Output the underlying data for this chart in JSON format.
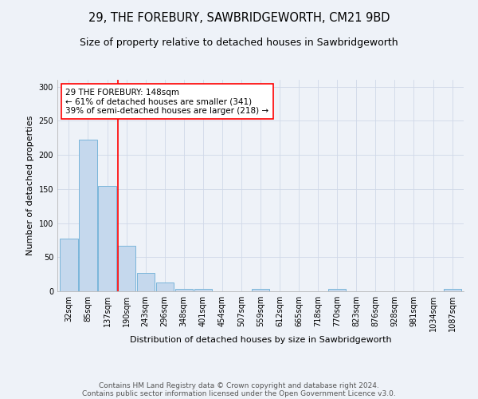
{
  "title": "29, THE FOREBURY, SAWBRIDGEWORTH, CM21 9BD",
  "subtitle": "Size of property relative to detached houses in Sawbridgeworth",
  "xlabel": "Distribution of detached houses by size in Sawbridgeworth",
  "ylabel": "Number of detached properties",
  "bar_labels": [
    "32sqm",
    "85sqm",
    "137sqm",
    "190sqm",
    "243sqm",
    "296sqm",
    "348sqm",
    "401sqm",
    "454sqm",
    "507sqm",
    "559sqm",
    "612sqm",
    "665sqm",
    "718sqm",
    "770sqm",
    "823sqm",
    "876sqm",
    "928sqm",
    "981sqm",
    "1034sqm",
    "1087sqm"
  ],
  "bar_values": [
    77,
    222,
    155,
    67,
    27,
    13,
    4,
    4,
    0,
    0,
    4,
    0,
    0,
    0,
    4,
    0,
    0,
    0,
    0,
    0,
    4
  ],
  "bar_color": "#c5d8ed",
  "bar_edge_color": "#6aaed6",
  "ylim": [
    0,
    310
  ],
  "yticks": [
    0,
    50,
    100,
    150,
    200,
    250,
    300
  ],
  "grid_color": "#d0d8e8",
  "bg_color": "#eef2f8",
  "vline_x_index": 2.55,
  "vline_color": "red",
  "annotation_text": "29 THE FOREBURY: 148sqm\n← 61% of detached houses are smaller (341)\n39% of semi-detached houses are larger (218) →",
  "annotation_box_color": "white",
  "annotation_box_edge": "red",
  "footer1": "Contains HM Land Registry data © Crown copyright and database right 2024.",
  "footer2": "Contains public sector information licensed under the Open Government Licence v3.0.",
  "title_fontsize": 10.5,
  "subtitle_fontsize": 9,
  "axis_label_fontsize": 8,
  "tick_fontsize": 7,
  "annotation_fontsize": 7.5,
  "footer_fontsize": 6.5
}
